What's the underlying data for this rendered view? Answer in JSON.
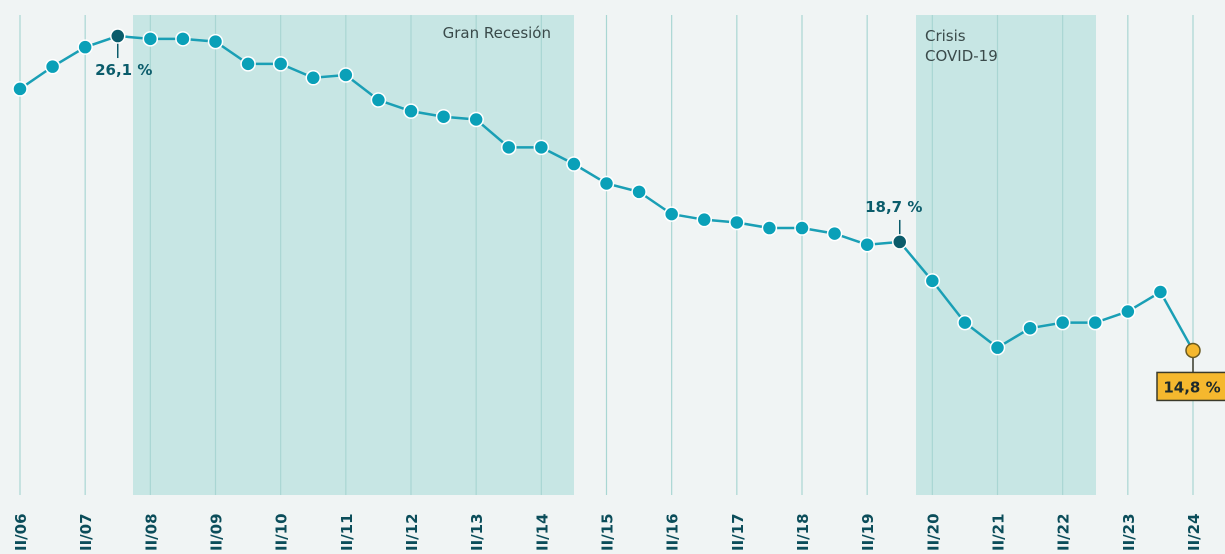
{
  "chart_data": {
    "type": "line",
    "annotations": [
      "Gran Recesión",
      "Crisis",
      "COVID-19"
    ],
    "categories": [
      "II/06",
      null,
      "II/07",
      null,
      "II/08",
      null,
      "II/09",
      null,
      "II/10",
      null,
      "II/11",
      null,
      "II/12",
      null,
      "II/13",
      null,
      "II/14",
      null,
      "II/15",
      null,
      "II/16",
      null,
      "II/17",
      null,
      "II/18",
      null,
      "II/19",
      null,
      "II/20",
      null,
      "II/21",
      null,
      "II/22",
      null,
      "II/23",
      null,
      "II/24"
    ],
    "series": [
      {
        "color": "#1a9fb5",
        "values": [
          24.2,
          25.0,
          25.7,
          26.1,
          26.0,
          26.0,
          25.9,
          25.1,
          25.1,
          24.6,
          24.7,
          23.8,
          23.4,
          23.2,
          23.1,
          22.1,
          22.1,
          21.5,
          20.8,
          20.5,
          19.7,
          19.5,
          19.4,
          19.2,
          19.2,
          19.0,
          18.6,
          18.7,
          17.3,
          15.8,
          14.9,
          15.6,
          15.8,
          15.8,
          16.2,
          16.9,
          14.8
        ],
        "value_labels": [
          null,
          null,
          null,
          "26,1 %",
          null,
          null,
          null,
          null,
          null,
          null,
          null,
          null,
          null,
          null,
          null,
          null,
          null,
          null,
          null,
          null,
          null,
          null,
          null,
          null,
          null,
          null,
          null,
          "18,7 %",
          null,
          null,
          null,
          null,
          null,
          null,
          null,
          null,
          "14,8 %"
        ]
      }
    ],
    "ylim": [
      10,
      27
    ],
    "grid": true
  }
}
